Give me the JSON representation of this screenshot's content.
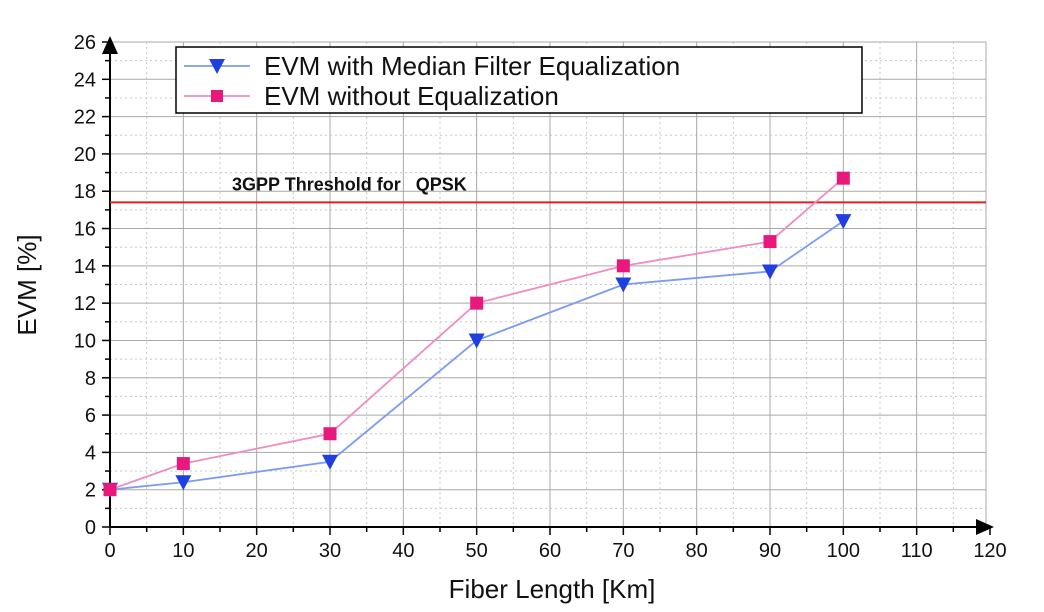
{
  "chart_data": {
    "type": "line",
    "xlabel": "Fiber Length [Km]",
    "ylabel": "EVM [%]",
    "xlim": [
      0,
      120
    ],
    "ylim": [
      0,
      26
    ],
    "xticks": [
      "0",
      "10",
      "20",
      "30",
      "40",
      "50",
      "60",
      "70",
      "80",
      "90",
      "100",
      "110",
      "120"
    ],
    "yticks": [
      "0",
      "2",
      "4",
      "6",
      "8",
      "10",
      "12",
      "14",
      "16",
      "18",
      "20",
      "22",
      "24",
      "26"
    ],
    "grid": true,
    "legend_position": "top-center",
    "series": [
      {
        "name": "EVM with Median Filter Equalization",
        "color": "#7b9cf0",
        "marker_color": "#1f3fe0",
        "marker": "triangle-down",
        "x": [
          0,
          10,
          30,
          50,
          70,
          90,
          100
        ],
        "y": [
          2.0,
          2.4,
          3.5,
          10.0,
          13.0,
          13.7,
          16.4
        ]
      },
      {
        "name": "EVM without Equalization",
        "color": "#f08cc4",
        "marker_color": "#e8187c",
        "marker": "square",
        "x": [
          0,
          10,
          30,
          50,
          70,
          90,
          100
        ],
        "y": [
          2.0,
          3.4,
          5.0,
          12.0,
          14.0,
          15.3,
          18.7
        ]
      }
    ],
    "annotations": [
      {
        "text": "3GPP Threshold for   QPSK",
        "type": "hline",
        "y": 17.4,
        "color": "#e02020"
      }
    ]
  }
}
